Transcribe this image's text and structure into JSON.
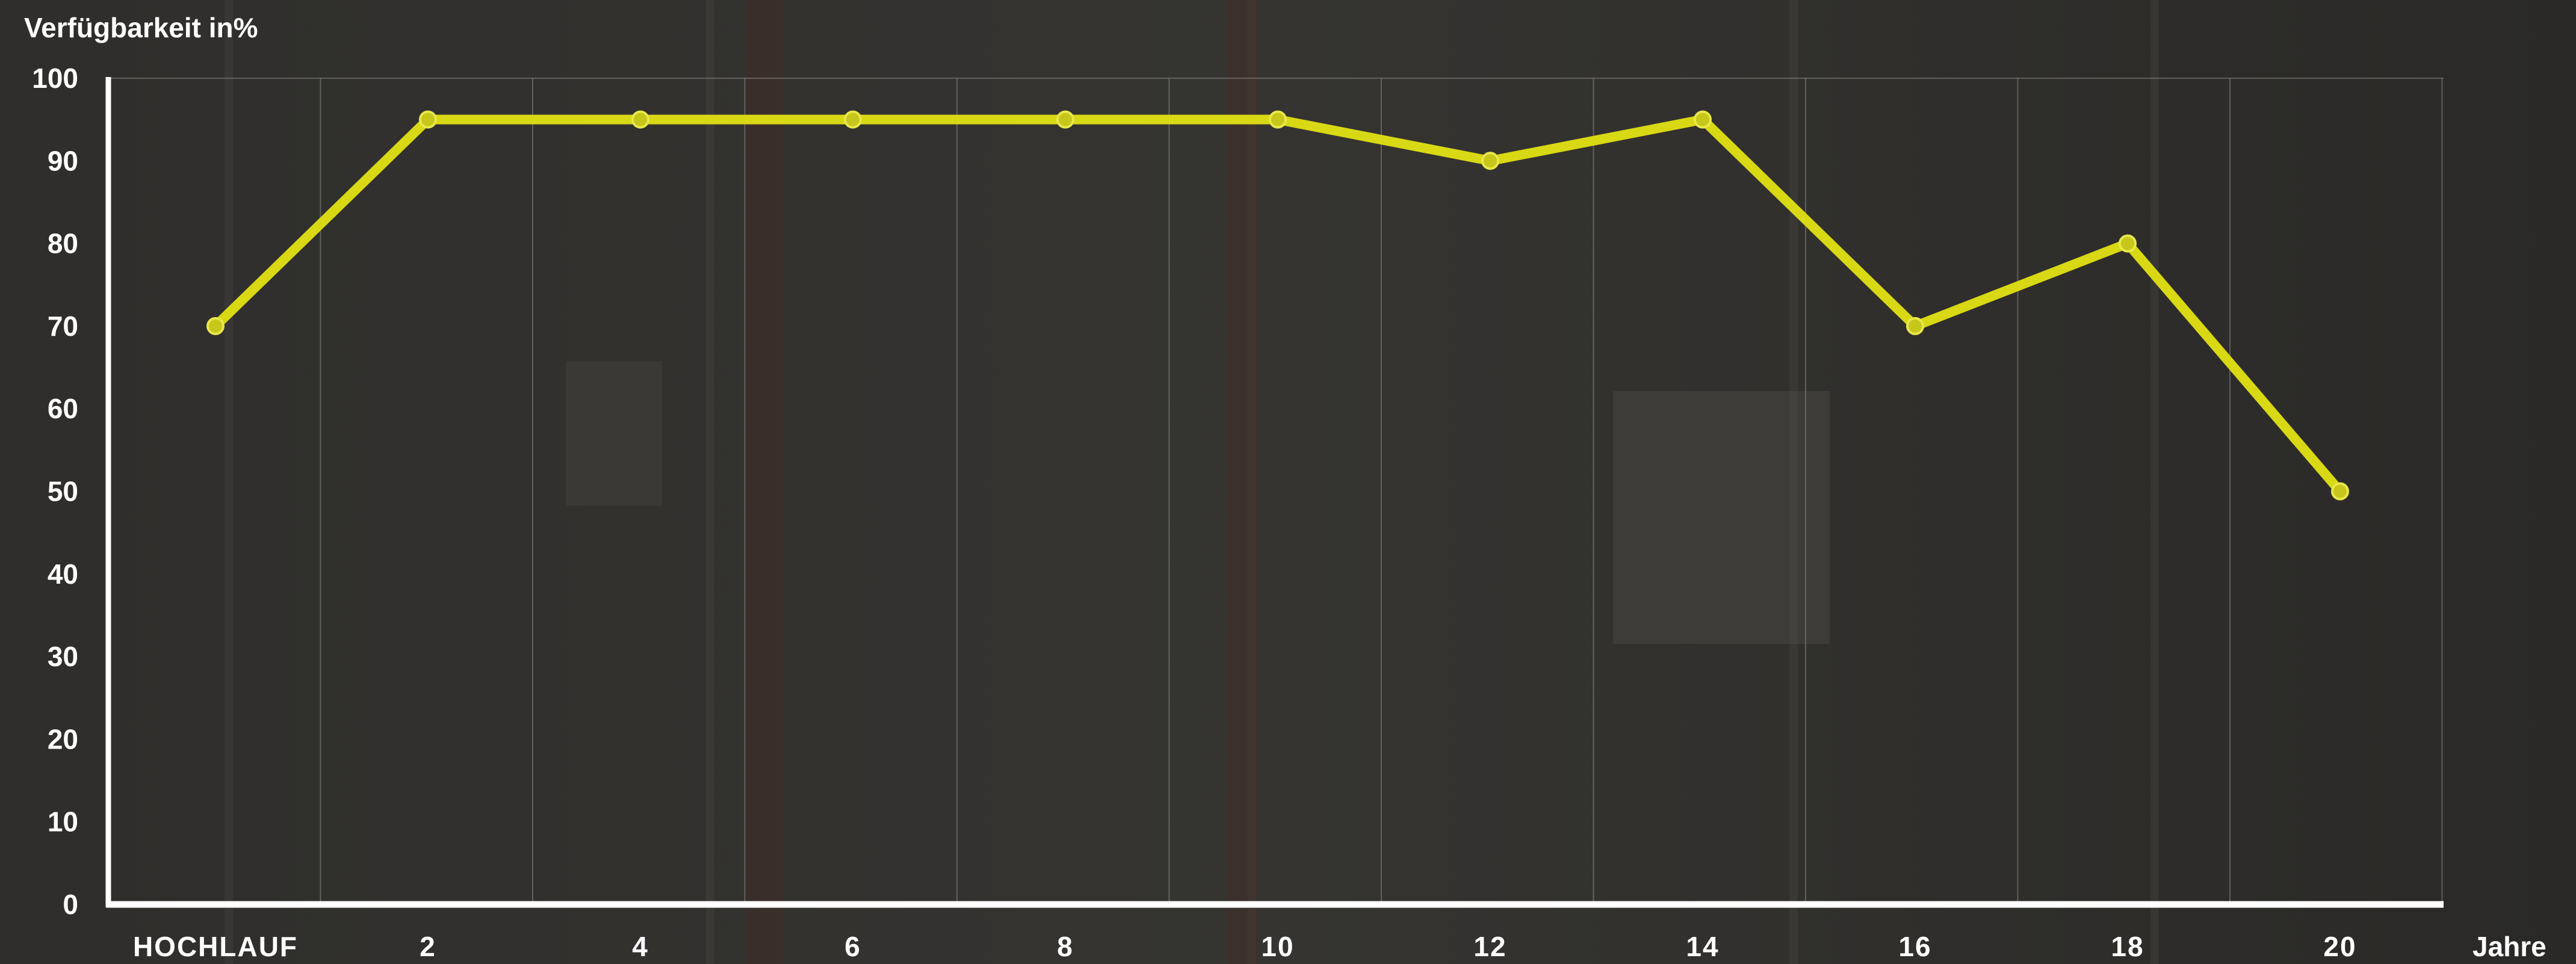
{
  "chart_data": {
    "type": "line",
    "ylabel": "Verfügbarkeit in%",
    "xlabel": "Jahre",
    "categories": [
      "HOCHLAUF",
      "2",
      "4",
      "6",
      "8",
      "10",
      "12",
      "14",
      "16",
      "18",
      "20"
    ],
    "values": [
      70,
      95,
      95,
      95,
      95,
      95,
      90,
      95,
      70,
      80,
      50
    ],
    "yticks": [
      "0",
      "10",
      "20",
      "30",
      "40",
      "50",
      "60",
      "70",
      "80",
      "90",
      "100"
    ],
    "ylim": [
      0,
      100
    ],
    "grid": "vertical",
    "colors": {
      "line": "#d9d814",
      "axis": "#ffffff",
      "grid": "#8a8884",
      "background": "#2b2a28"
    }
  }
}
